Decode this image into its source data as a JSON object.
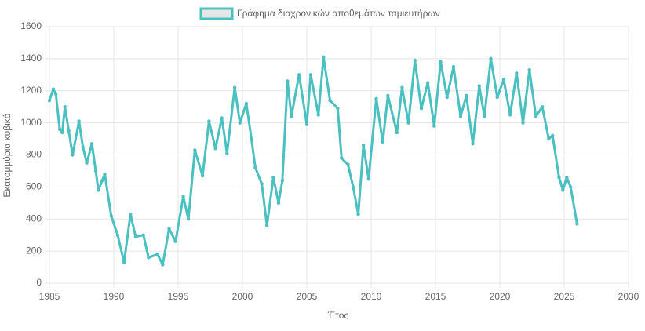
{
  "chart_data": {
    "type": "line",
    "legend": "top",
    "xlabel": "Έτος",
    "ylabel": "Εκατομμύρια κυβικά",
    "xlim": [
      1985,
      2030
    ],
    "xticks": [
      1985,
      1990,
      1995,
      2000,
      2005,
      2010,
      2015,
      2020,
      2025,
      2030
    ],
    "ylim": [
      0,
      1600
    ],
    "yticks": [
      0,
      200,
      400,
      600,
      800,
      1000,
      1200,
      1400,
      1600
    ],
    "grid": true,
    "series": [
      {
        "name": "Γράφημα διαχρονικών αποθεμάτων ταμιευτήρων",
        "color": "#4bc0c0",
        "x": [
          1985.0,
          1985.3,
          1985.5,
          1985.8,
          1986.0,
          1986.2,
          1986.5,
          1986.8,
          1987.3,
          1987.6,
          1987.9,
          1988.3,
          1988.6,
          1988.8,
          1989.1,
          1989.3,
          1989.8,
          1990.3,
          1990.8,
          1991.3,
          1991.7,
          1992.3,
          1992.7,
          1993.4,
          1993.8,
          1994.3,
          1994.8,
          1995.4,
          1995.8,
          1996.3,
          1996.9,
          1997.4,
          1997.9,
          1998.4,
          1998.8,
          1999.4,
          1999.8,
          2000.3,
          2000.7,
          2001.0,
          2001.5,
          2001.9,
          2002.4,
          2002.8,
          2003.1,
          2003.5,
          2003.8,
          2004.4,
          2005.0,
          2005.3,
          2005.9,
          2006.3,
          2006.8,
          2007.4,
          2007.7,
          2008.2,
          2008.6,
          2009.0,
          2009.4,
          2009.8,
          2010.4,
          2010.9,
          2011.3,
          2012.0,
          2012.4,
          2012.9,
          2013.4,
          2013.9,
          2014.4,
          2014.9,
          2015.4,
          2015.9,
          2016.4,
          2016.95,
          2017.4,
          2017.9,
          2018.4,
          2018.8,
          2019.3,
          2019.8,
          2020.3,
          2020.8,
          2021.3,
          2021.8,
          2022.3,
          2022.8,
          2023.3,
          2023.8,
          2024.1,
          2024.6,
          2024.9,
          2025.2,
          2025.5,
          2026.0
        ],
        "values": [
          1140,
          1210,
          1180,
          960,
          940,
          1100,
          950,
          800,
          1010,
          850,
          750,
          870,
          700,
          580,
          640,
          680,
          420,
          300,
          130,
          430,
          290,
          300,
          160,
          180,
          115,
          340,
          260,
          540,
          400,
          830,
          670,
          1010,
          840,
          1030,
          810,
          1220,
          1000,
          1120,
          900,
          720,
          620,
          360,
          660,
          500,
          640,
          1260,
          1040,
          1300,
          990,
          1300,
          1050,
          1410,
          1140,
          1090,
          780,
          740,
          600,
          430,
          860,
          650,
          1150,
          880,
          1170,
          940,
          1220,
          1000,
          1390,
          1090,
          1250,
          980,
          1380,
          1160,
          1350,
          1040,
          1170,
          870,
          1230,
          1040,
          1400,
          1160,
          1270,
          1050,
          1310,
          1000,
          1330,
          1040,
          1100,
          900,
          920,
          660,
          580,
          660,
          600,
          370
        ]
      }
    ]
  }
}
